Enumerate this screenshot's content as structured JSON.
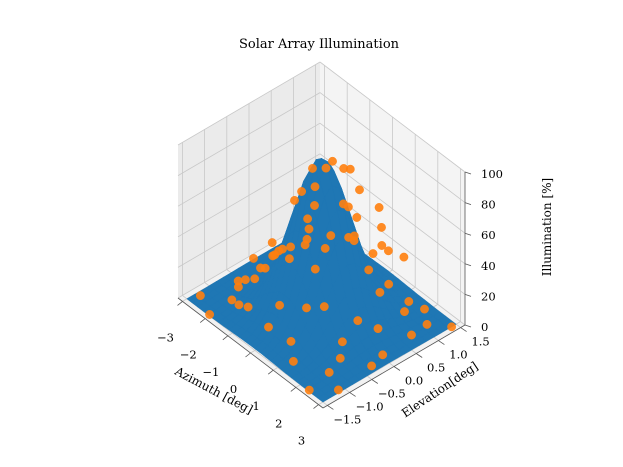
{
  "chart_data": {
    "type": "surface3d_scatter",
    "title": "Solar Array Illumination",
    "xlabel": "Azimuth [deg]",
    "ylabel": "Elevation[deg]",
    "zlabel": "Illumination [%]",
    "xlim": [
      -3.2,
      3.2
    ],
    "ylim": [
      -1.6,
      1.6
    ],
    "zlim": [
      0,
      100
    ],
    "xticks": [
      -3,
      -2,
      -1,
      0,
      1,
      2,
      3
    ],
    "xtick_labels": [
      "−3",
      "−2",
      "−1",
      "0",
      "1",
      "2",
      "3"
    ],
    "yticks": [
      -1.5,
      -1.0,
      -0.5,
      0.0,
      0.5,
      1.0,
      1.5
    ],
    "ytick_labels": [
      "−1.5",
      "−1.0",
      "−0.5",
      "0.0",
      "0.5",
      "1.0",
      "1.5"
    ],
    "zticks": [
      0,
      20,
      40,
      60,
      80,
      100
    ],
    "ztick_labels": [
      "0",
      "20",
      "40",
      "60",
      "80",
      "100"
    ],
    "surface": {
      "name": "illumination surface",
      "model": "gaussian",
      "peak_value": 100,
      "peak_location": [
        0,
        0
      ],
      "x_range": [
        -3,
        3
      ],
      "y_range": [
        -1.5,
        1.5
      ],
      "color": "#1f77b4"
    },
    "scatter": {
      "name": "samples",
      "color": "#ff7f0e",
      "points": [
        [
          -2.8,
          -1.3,
          1
        ],
        [
          -2.5,
          -0.6,
          2
        ],
        [
          -2.2,
          0.4,
          3
        ],
        [
          -2.9,
          1.2,
          1
        ],
        [
          -1.8,
          -1.1,
          6
        ],
        [
          -1.6,
          0.9,
          8
        ],
        [
          -1.3,
          -0.3,
          30
        ],
        [
          -1.1,
          1.3,
          15
        ],
        [
          -0.9,
          -1.4,
          18
        ],
        [
          -0.7,
          0.2,
          58
        ],
        [
          -0.5,
          -0.8,
          45
        ],
        [
          -0.4,
          1.0,
          40
        ],
        [
          -0.2,
          -0.1,
          93
        ],
        [
          0.0,
          0.5,
          85
        ],
        [
          0.1,
          -0.5,
          88
        ],
        [
          0.3,
          1.2,
          38
        ],
        [
          0.5,
          -1.2,
          30
        ],
        [
          0.6,
          0.3,
          70
        ],
        [
          0.8,
          -0.2,
          62
        ],
        [
          0.9,
          0.9,
          38
        ],
        [
          1.1,
          -0.9,
          30
        ],
        [
          1.3,
          0.4,
          35
        ],
        [
          1.5,
          -1.4,
          8
        ],
        [
          1.7,
          1.1,
          7
        ],
        [
          1.9,
          -0.5,
          10
        ],
        [
          2.1,
          0.2,
          9
        ],
        [
          2.3,
          -1.0,
          3
        ],
        [
          2.6,
          0.7,
          2
        ],
        [
          2.8,
          -0.3,
          1
        ],
        [
          3.0,
          1.4,
          0
        ],
        [
          -3.0,
          0.0,
          1
        ],
        [
          -2.0,
          -1.5,
          1
        ],
        [
          -1.5,
          1.5,
          4
        ],
        [
          -1.0,
          -0.6,
          44
        ],
        [
          -0.6,
          0.8,
          50
        ],
        [
          -0.3,
          -1.5,
          25
        ],
        [
          0.2,
          0.0,
          96
        ],
        [
          0.4,
          -0.9,
          62
        ],
        [
          0.7,
          1.5,
          18
        ],
        [
          1.0,
          0.1,
          58
        ],
        [
          1.2,
          -1.3,
          16
        ],
        [
          1.4,
          0.8,
          20
        ],
        [
          1.8,
          -0.1,
          16
        ],
        [
          2.0,
          1.3,
          2
        ],
        [
          2.4,
          -1.5,
          1
        ],
        [
          2.7,
          0.0,
          2
        ],
        [
          -2.6,
          1.0,
          1
        ],
        [
          -2.3,
          -0.2,
          6
        ],
        [
          -1.9,
          0.6,
          12
        ],
        [
          -1.4,
          -1.0,
          22
        ],
        [
          -0.8,
          -0.2,
          67
        ],
        [
          -0.1,
          0.7,
          80
        ],
        [
          0.0,
          -1.1,
          55
        ],
        [
          0.5,
          0.6,
          75
        ],
        [
          0.9,
          -0.6,
          48
        ],
        [
          1.6,
          0.5,
          22
        ],
        [
          2.2,
          -0.7,
          6
        ],
        [
          2.5,
          1.1,
          1
        ],
        [
          -2.1,
          -0.8,
          6
        ],
        [
          -1.2,
          0.3,
          42
        ],
        [
          -0.6,
          -1.2,
          35
        ],
        [
          -0.3,
          0.4,
          88
        ],
        [
          0.3,
          -0.3,
          90
        ],
        [
          0.8,
          1.1,
          30
        ],
        [
          1.3,
          -0.6,
          28
        ],
        [
          1.9,
          0.9,
          6
        ],
        [
          2.9,
          -1.1,
          0
        ],
        [
          -2.7,
          0.5,
          2
        ],
        [
          -1.7,
          -0.4,
          16
        ],
        [
          -0.2,
          1.4,
          42
        ],
        [
          0.6,
          -1.5,
          22
        ],
        [
          1.1,
          0.6,
          40
        ]
      ]
    }
  }
}
